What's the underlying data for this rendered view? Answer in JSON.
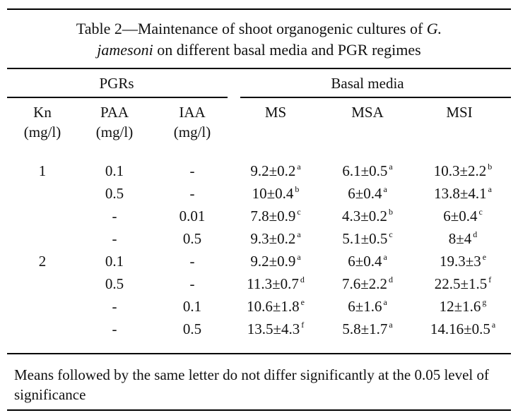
{
  "caption": {
    "prefix": "Table 2—Maintenance of shoot organogenic cultures of ",
    "genus": "G.",
    "species": "jamesoni",
    "suffix": " on different basal media and PGR regimes"
  },
  "group_headers": {
    "pgrs": "PGRs",
    "basal": "Basal media"
  },
  "columns": {
    "kn": [
      "Kn",
      "(mg/l)"
    ],
    "paa": [
      "PAA",
      "(mg/l)"
    ],
    "iaa": [
      "IAA",
      "(mg/l)"
    ],
    "ms": "MS",
    "msa": "MSA",
    "msi": "MSI"
  },
  "rows": [
    {
      "kn": "1",
      "paa": "0.1",
      "iaa": "-",
      "ms": [
        "9.2±0.2",
        "a"
      ],
      "msa": [
        "6.1±0.5",
        "a"
      ],
      "msi": [
        "10.3±2.2",
        "b"
      ]
    },
    {
      "kn": "",
      "paa": "0.5",
      "iaa": "-",
      "ms": [
        "10±0.4",
        "b"
      ],
      "msa": [
        "6±0.4",
        "a"
      ],
      "msi": [
        "13.8±4.1",
        "a"
      ]
    },
    {
      "kn": "",
      "paa": "-",
      "iaa": "0.01",
      "ms": [
        "7.8±0.9",
        "c"
      ],
      "msa": [
        "4.3±0.2",
        "b"
      ],
      "msi": [
        "6±0.4",
        "c"
      ]
    },
    {
      "kn": "",
      "paa": "-",
      "iaa": "0.5",
      "ms": [
        "9.3±0.2",
        "a"
      ],
      "msa": [
        "5.1±0.5",
        "c"
      ],
      "msi": [
        "8±4",
        "d"
      ]
    },
    {
      "kn": "2",
      "paa": "0.1",
      "iaa": "-",
      "ms": [
        "9.2±0.9",
        "a"
      ],
      "msa": [
        "6±0.4",
        "a"
      ],
      "msi": [
        "19.3±3",
        "e"
      ]
    },
    {
      "kn": "",
      "paa": "0.5",
      "iaa": "-",
      "ms": [
        "11.3±0.7",
        "d"
      ],
      "msa": [
        "7.6±2.2",
        "d"
      ],
      "msi": [
        "22.5±1.5",
        "f"
      ]
    },
    {
      "kn": "",
      "paa": "-",
      "iaa": "0.1",
      "ms": [
        "10.6±1.8",
        "e"
      ],
      "msa": [
        "6±1.6",
        "a"
      ],
      "msi": [
        "12±1.6",
        "g"
      ]
    },
    {
      "kn": "",
      "paa": "-",
      "iaa": "0.5",
      "ms": [
        "13.5±4.3",
        "f"
      ],
      "msa": [
        "5.8±1.7",
        "a"
      ],
      "msi": [
        "14.16±0.5",
        "a"
      ]
    }
  ],
  "footnote": "Means followed by the same letter do not differ significantly at the 0.05 level of significance"
}
